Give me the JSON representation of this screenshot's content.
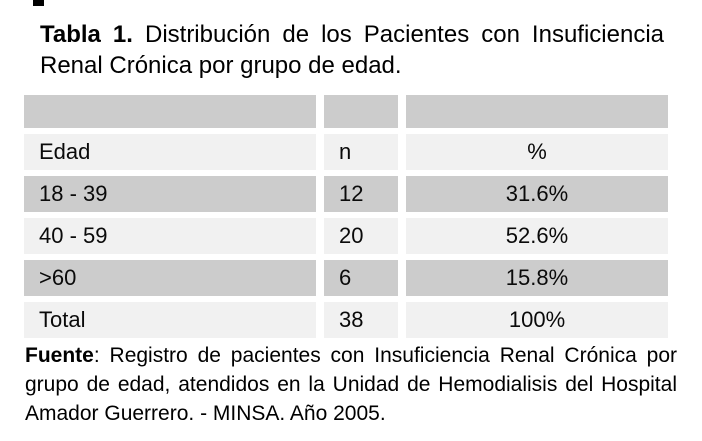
{
  "document": {
    "title": {
      "label_bold": "Tabla 1.",
      "label_rest": "Distribución de los Pacientes con Insuficiencia Renal Crónica por grupo de edad."
    },
    "table": {
      "header": {
        "edad": "Edad",
        "n": "n",
        "pct": "%"
      },
      "rows": [
        {
          "edad": "18 - 39",
          "n": "12",
          "pct": "31.6%"
        },
        {
          "edad": "40 - 59",
          "n": "20",
          "pct": "52.6%"
        },
        {
          "edad": ">60",
          "n": "6",
          "pct": "15.8%"
        }
      ],
      "total": {
        "edad": "Total",
        "n": "38",
        "pct": "100%"
      }
    },
    "source": {
      "label_bold": "Fuente",
      "label_rest": ": Registro de pacientes con Insuficiencia Renal Crónica por grupo de edad, atendidos en la Unidad de Hemodialisis del Hospital Amador Guerrero. - MINSA. Año 2005."
    }
  },
  "colors": {
    "page_bg": "#ffffff",
    "row_gray": "#cccccc",
    "row_light": "#f1f1f1",
    "text": "#000000"
  },
  "chart_data": {
    "type": "table",
    "title": "Tabla 1. Distribución de los Pacientes con Insuficiencia Renal Crónica por grupo de edad.",
    "columns": [
      "Edad",
      "n",
      "%"
    ],
    "rows": [
      [
        "18 - 39",
        12,
        "31.6%"
      ],
      [
        "40 - 59",
        20,
        "52.6%"
      ],
      [
        ">60",
        6,
        "15.8%"
      ],
      [
        "Total",
        38,
        "100%"
      ]
    ],
    "source_note": "Fuente: Registro de pacientes con Insuficiencia Renal Crónica por grupo de edad, atendidos en la Unidad de Hemodialisis del Hospital Amador Guerrero. - MINSA. Año 2005."
  }
}
